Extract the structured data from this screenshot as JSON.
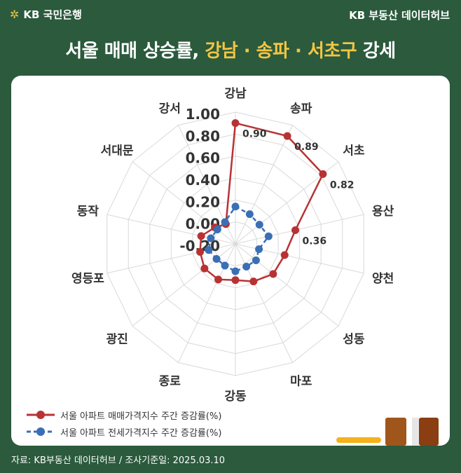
{
  "header": {
    "logo_text": "KB 국민은행",
    "brand": "KB 부동산 데이터허브",
    "title_prefix": "서울 매매 상승률, ",
    "title_highlight": "강남 · 송파 · 서초구",
    "title_suffix": " 강세"
  },
  "footer": {
    "source": "자료: KB부동산 데이터허브 / 조사기준일: 2025.03.10"
  },
  "colors": {
    "background": "#2b5a3d",
    "sale": "#b83234",
    "jeonse": "#3a6fb5",
    "highlight": "#f5c542"
  },
  "chart_data": {
    "type": "radar",
    "categories": [
      "강남",
      "송파",
      "서초",
      "용산",
      "양천",
      "성동",
      "마포",
      "강동",
      "종로",
      "광진",
      "영등포",
      "동작",
      "서대문",
      "강서"
    ],
    "rlim": [
      -0.2,
      1.0
    ],
    "ticks": [
      "1.00",
      "0.80",
      "0.60",
      "0.40",
      "0.20",
      "0.00",
      "-0.20"
    ],
    "series": [
      {
        "name": "서울 아파트 매매가격지수 주간 증감률(%)",
        "style": "solid",
        "color": "#b83234",
        "values": [
          0.9,
          0.89,
          0.82,
          0.36,
          0.26,
          0.24,
          0.18,
          0.13,
          0.16,
          0.16,
          0.13,
          0.12,
          0.04,
          0.0
        ],
        "labels": [
          "0.90",
          "0.89",
          "0.82",
          "0.36",
          "",
          "",
          "",
          "",
          "",
          "",
          "",
          "",
          "",
          ""
        ]
      },
      {
        "name": "서울 아파트 전세가격지수 주간 증감률(%)",
        "style": "dashed",
        "color": "#3a6fb5",
        "values": [
          0.14,
          0.1,
          0.08,
          0.11,
          0.02,
          0.04,
          0.03,
          0.05,
          0.02,
          0.02,
          0.05,
          0.03,
          0.01,
          0.02
        ]
      }
    ],
    "legend_position": "bottom-left",
    "grid": true
  }
}
